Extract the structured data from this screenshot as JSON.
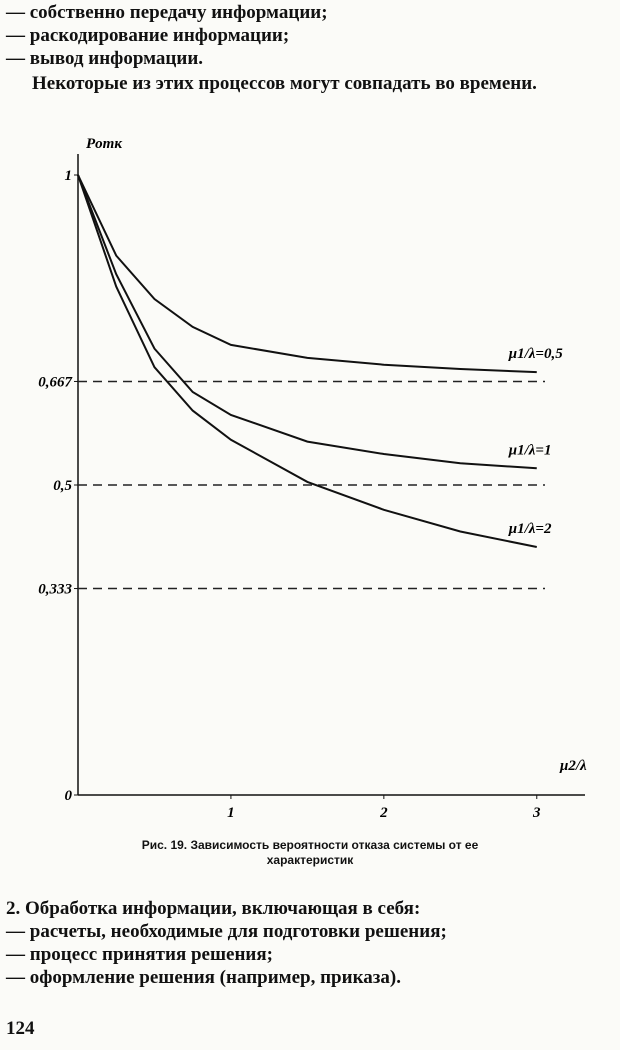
{
  "text_top": [
    "— собственно передачу информации;",
    "— раскодирование информации;",
    "— вывод информации."
  ],
  "paragraph": "Некоторые из этих процессов могут совпадать во времени.",
  "chart_data": {
    "type": "line",
    "x_label": "μ2/λ",
    "y_label": "Pотк",
    "x": [
      0,
      0.25,
      0.5,
      0.75,
      1,
      1.5,
      2,
      2.5,
      3
    ],
    "series": [
      {
        "name": "μ1/λ=0,5",
        "color": "#111111",
        "values": [
          1,
          0.87,
          0.8,
          0.755,
          0.726,
          0.705,
          0.694,
          0.687,
          0.682
        ]
      },
      {
        "name": "μ1/λ=1",
        "color": "#111111",
        "values": [
          1,
          0.84,
          0.72,
          0.65,
          0.613,
          0.57,
          0.55,
          0.535,
          0.527
        ]
      },
      {
        "name": "μ1/λ=2",
        "color": "#111111",
        "values": [
          1,
          0.82,
          0.69,
          0.62,
          0.573,
          0.505,
          0.46,
          0.425,
          0.4
        ]
      }
    ],
    "xlim": [
      0,
      3.25
    ],
    "xticks": [
      1,
      2,
      3
    ],
    "ylim": [
      0,
      1.05
    ],
    "yticks": [
      0,
      {
        "value": 0.333,
        "label": "0,333"
      },
      {
        "value": 0.5,
        "label": "0,5"
      },
      {
        "value": 0.667,
        "label": "0,667"
      },
      1
    ],
    "reference_lines": [
      0.333,
      0.5,
      0.667
    ]
  },
  "caption": [
    "Рис. 19. Зависимость вероятности отказа системы от ее",
    "характеристик"
  ],
  "text_bottom": [
    "2. Обработка информации, включающая в себя:",
    "— расчеты, необходимые для подготовки решения;",
    "— процесс принятия решения;",
    "— оформление решения (например, приказа)."
  ],
  "page_number": "124"
}
